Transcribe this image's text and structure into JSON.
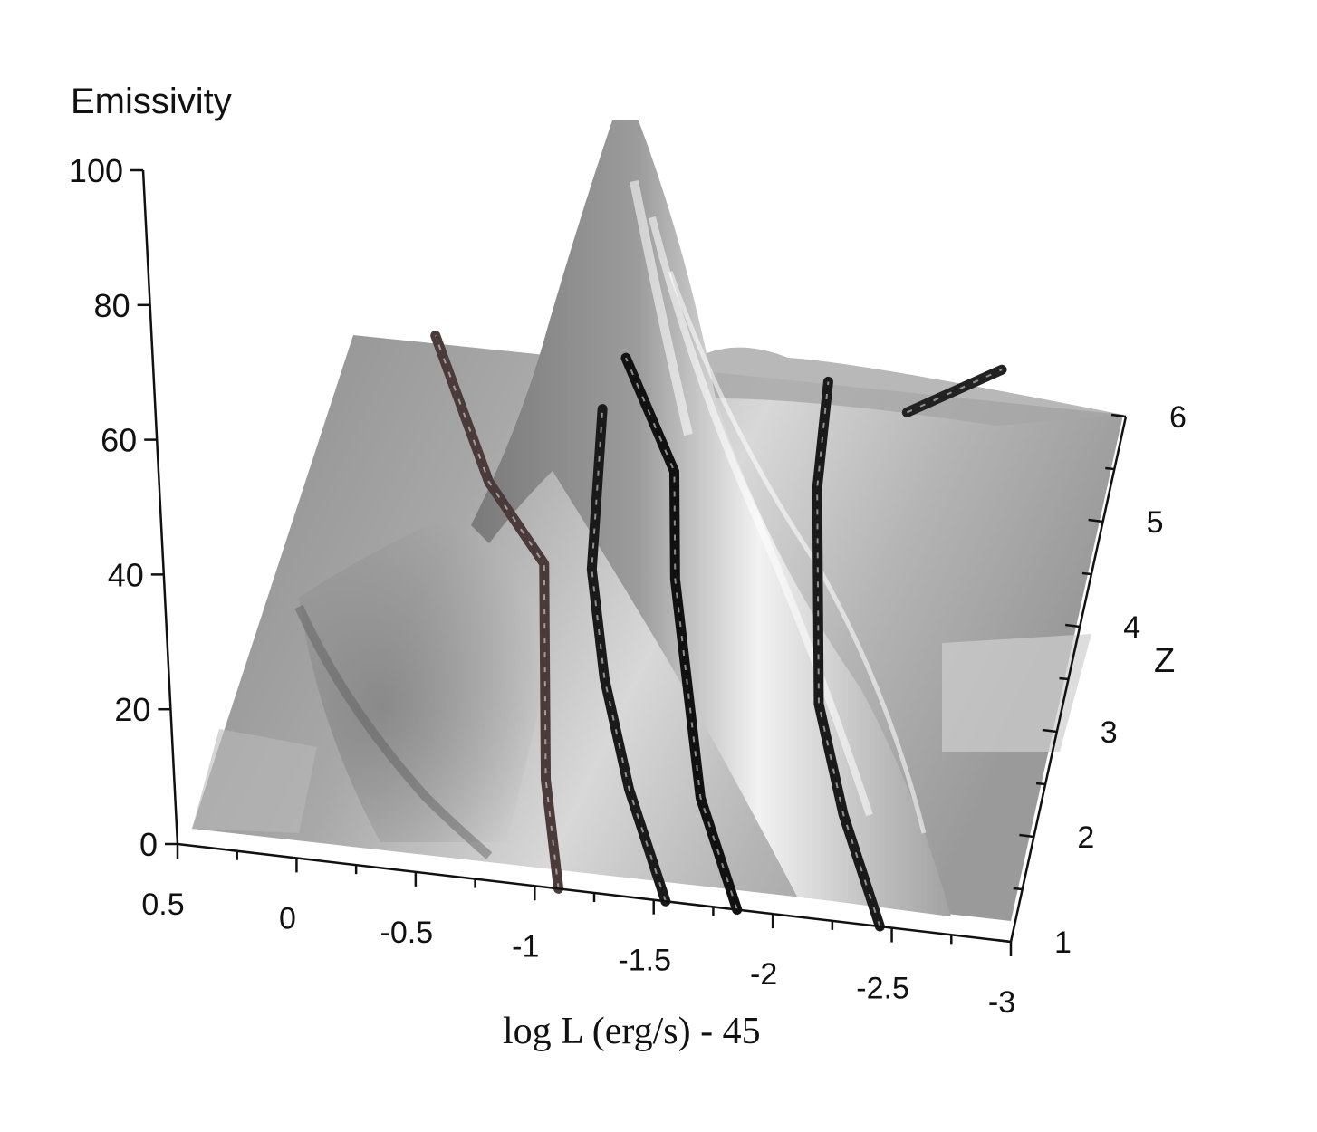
{
  "chart_data": {
    "type": "surface",
    "title": "",
    "zlabel": "Emissivity",
    "xlabel": "log L (erg/s) - 45",
    "ylabel": "Z",
    "zlim": [
      0,
      100
    ],
    "xlim": [
      0.5,
      -3
    ],
    "ylim": [
      1,
      6
    ],
    "z_ticks": [
      "0",
      "20",
      "40",
      "60",
      "80",
      "100"
    ],
    "x_ticks": [
      "0.5",
      "0",
      "-0.5",
      "-1",
      "-1.5",
      "-2",
      "-2.5",
      "-3"
    ],
    "y_ticks": [
      "1",
      "2",
      "3",
      "4",
      "5",
      "6"
    ],
    "surface_peak": {
      "x": -1.6,
      "y": 6,
      "z": 100
    },
    "tracks": [
      {
        "points": [
          [
            -1.1,
            1.0
          ],
          [
            -0.95,
            2.0
          ],
          [
            -0.85,
            3.0
          ],
          [
            -0.75,
            4.0
          ],
          [
            -0.45,
            4.7
          ],
          [
            -0.1,
            6.0
          ]
        ]
      },
      {
        "points": [
          [
            -1.55,
            1.0
          ],
          [
            -1.3,
            2.0
          ],
          [
            -1.1,
            3.0
          ],
          [
            -0.95,
            4.0
          ],
          [
            -0.85,
            5.5
          ]
        ]
      },
      {
        "points": [
          [
            -1.85,
            1.0
          ],
          [
            -1.6,
            2.0
          ],
          [
            -1.45,
            3.0
          ],
          [
            -1.3,
            4.0
          ],
          [
            -1.2,
            5.0
          ],
          [
            -0.9,
            6.0
          ]
        ]
      },
      {
        "points": [
          [
            -2.45,
            1.0
          ],
          [
            -2.2,
            2.0
          ],
          [
            -2.0,
            3.0
          ],
          [
            -1.9,
            4.0
          ],
          [
            -1.8,
            5.0
          ],
          [
            -1.75,
            6.0
          ]
        ]
      },
      {
        "points": [
          [
            -2.1,
            5.8
          ],
          [
            -2.45,
            6.3
          ]
        ]
      }
    ]
  }
}
